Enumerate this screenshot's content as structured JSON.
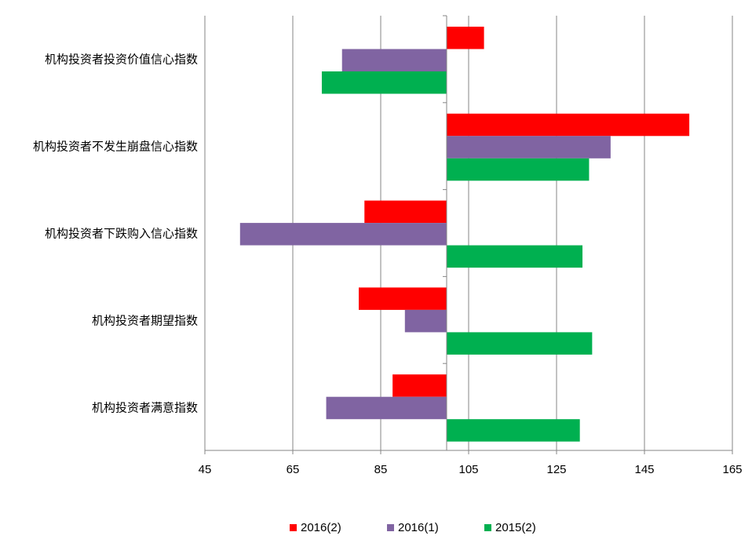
{
  "chart_data": {
    "type": "bar",
    "orientation": "horizontal",
    "baseline": 100,
    "xlim": [
      45,
      165
    ],
    "xticks": [
      "45",
      "65",
      "85",
      "105",
      "125",
      "145",
      "165"
    ],
    "grid": true,
    "legend_position": "bottom",
    "categories": [
      "机构投资者投资价值信心指数",
      "机构投资者不发生崩盘信心指数",
      "机构投资者下跌购入信心指数",
      "机构投资者期望指数",
      "机构投资者满意指数"
    ],
    "series": [
      {
        "name": "2016(2)",
        "color": "#ff0000",
        "values": [
          108.5,
          155.2,
          81.3,
          80.0,
          87.7
        ]
      },
      {
        "name": "2016(1)",
        "color": "#8064a2",
        "values": [
          76.2,
          137.3,
          53.0,
          90.5,
          72.6
        ]
      },
      {
        "name": "2015(2)",
        "color": "#00b050",
        "values": [
          71.6,
          132.4,
          130.9,
          133.1,
          130.3
        ]
      }
    ]
  }
}
